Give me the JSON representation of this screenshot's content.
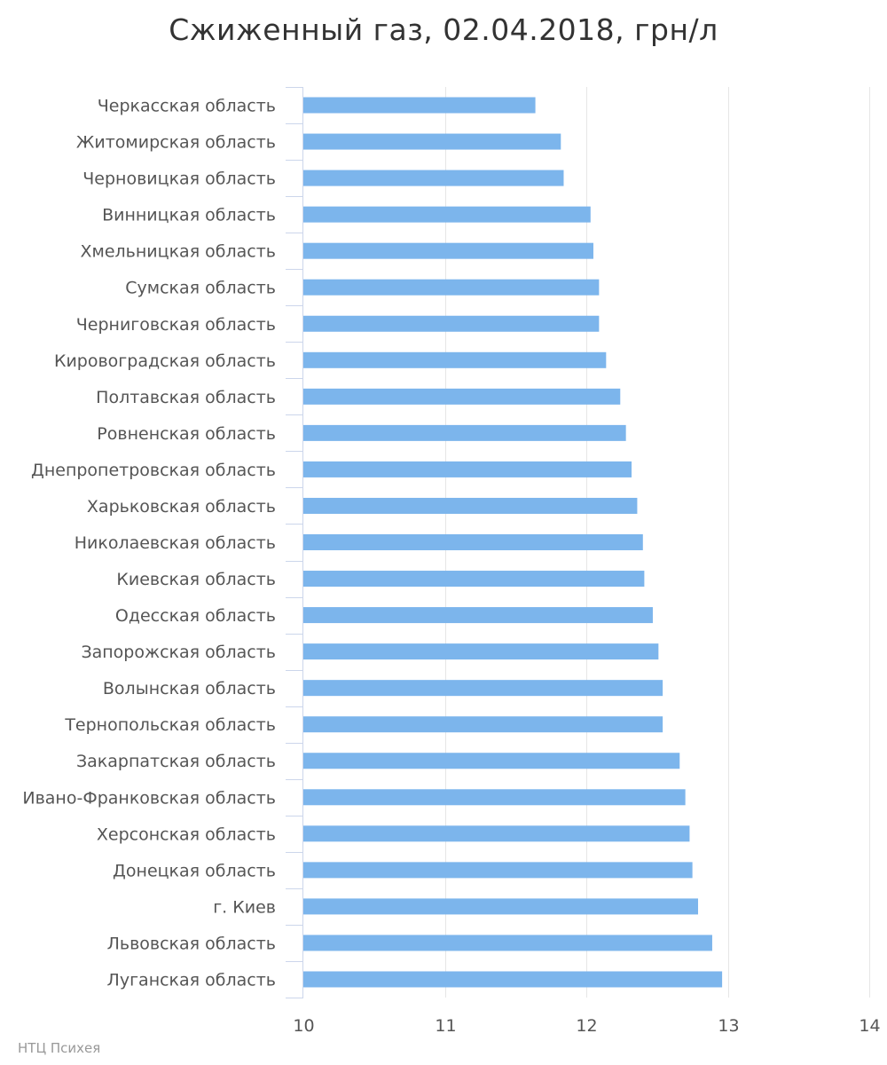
{
  "chart_data": {
    "type": "bar",
    "orientation": "horizontal",
    "title": "Сжиженный газ, 02.04.2018, грн/л",
    "categories": [
      "Черкасская область",
      "Житомирская область",
      "Черновицкая область",
      "Винницкая область",
      "Хмельницкая область",
      "Сумская область",
      "Черниговская область",
      "Кировоградская область",
      "Полтавская область",
      "Ровненская область",
      "Днепропетровская область",
      "Харьковская область",
      "Николаевская область",
      "Киевская область",
      "Одесская область",
      "Запорожская область",
      "Волынская область",
      "Тернопольская область",
      "Закарпатская область",
      "Ивано-Франковская область",
      "Херсонская область",
      "Донецкая область",
      "г. Киев",
      "Львовская область",
      "Луганская область"
    ],
    "values": [
      11.64,
      11.82,
      11.84,
      12.03,
      12.05,
      12.09,
      12.09,
      12.14,
      12.24,
      12.28,
      12.32,
      12.36,
      12.4,
      12.41,
      12.47,
      12.51,
      12.54,
      12.54,
      12.66,
      12.7,
      12.73,
      12.75,
      12.79,
      12.89,
      12.96
    ],
    "xlim": [
      10,
      14
    ],
    "xticks": [
      "10",
      "11",
      "12",
      "13",
      "14"
    ],
    "xlabel": "",
    "ylabel": "",
    "bar_color": "#7cb5ec",
    "grid": true
  },
  "credits": "НТЦ Психея"
}
